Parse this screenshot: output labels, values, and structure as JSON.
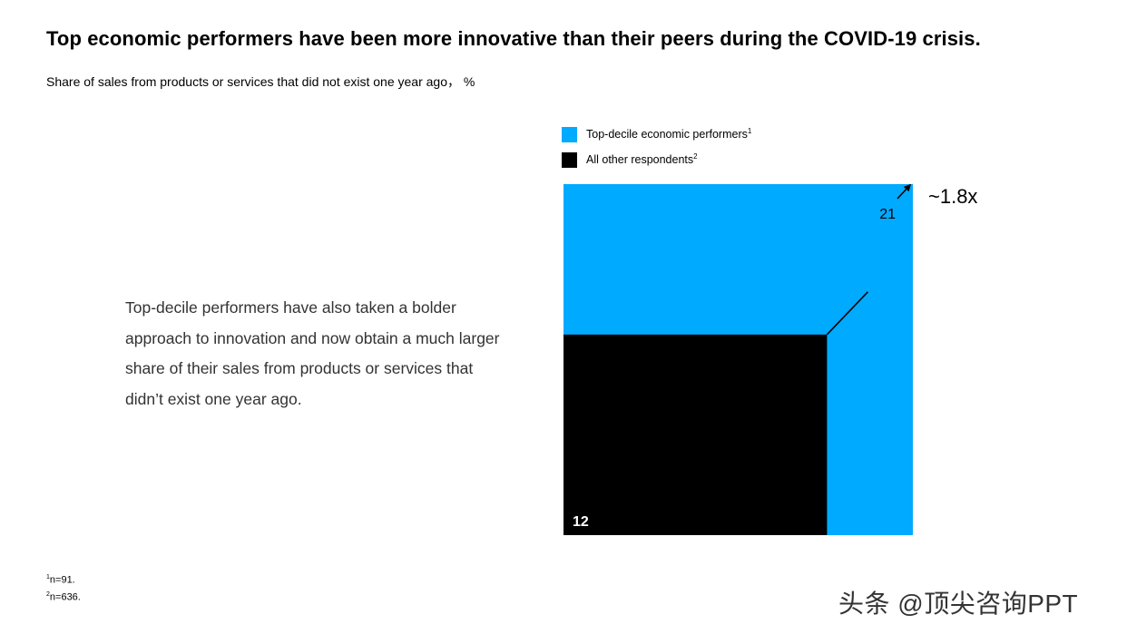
{
  "title": "Top economic performers have been more innovative than their peers during the COVID-19 crisis.",
  "subtitle": "Share of sales from products or services that did not exist one year ago， %",
  "body_text": "Top-decile performers have also taken a bolder approach to innovation and now obtain a much larger share of their sales from products or services that didn’t exist one year ago.",
  "colors": {
    "top": "#00aaff",
    "other": "#000000"
  },
  "chart_data": {
    "type": "area",
    "series": [
      {
        "name": "Top-decile economic performers",
        "footnote": "1",
        "value": 21
      },
      {
        "name": "All other respondents",
        "footnote": "2",
        "value": 12
      }
    ],
    "value_labels": [
      "21",
      "12"
    ],
    "multiplier_label": "~1.8x"
  },
  "footnotes": [
    {
      "marker": "1",
      "text": "n=91."
    },
    {
      "marker": "2",
      "text": "n=636."
    }
  ],
  "watermark": "头条 @顶尖咨询PPT"
}
